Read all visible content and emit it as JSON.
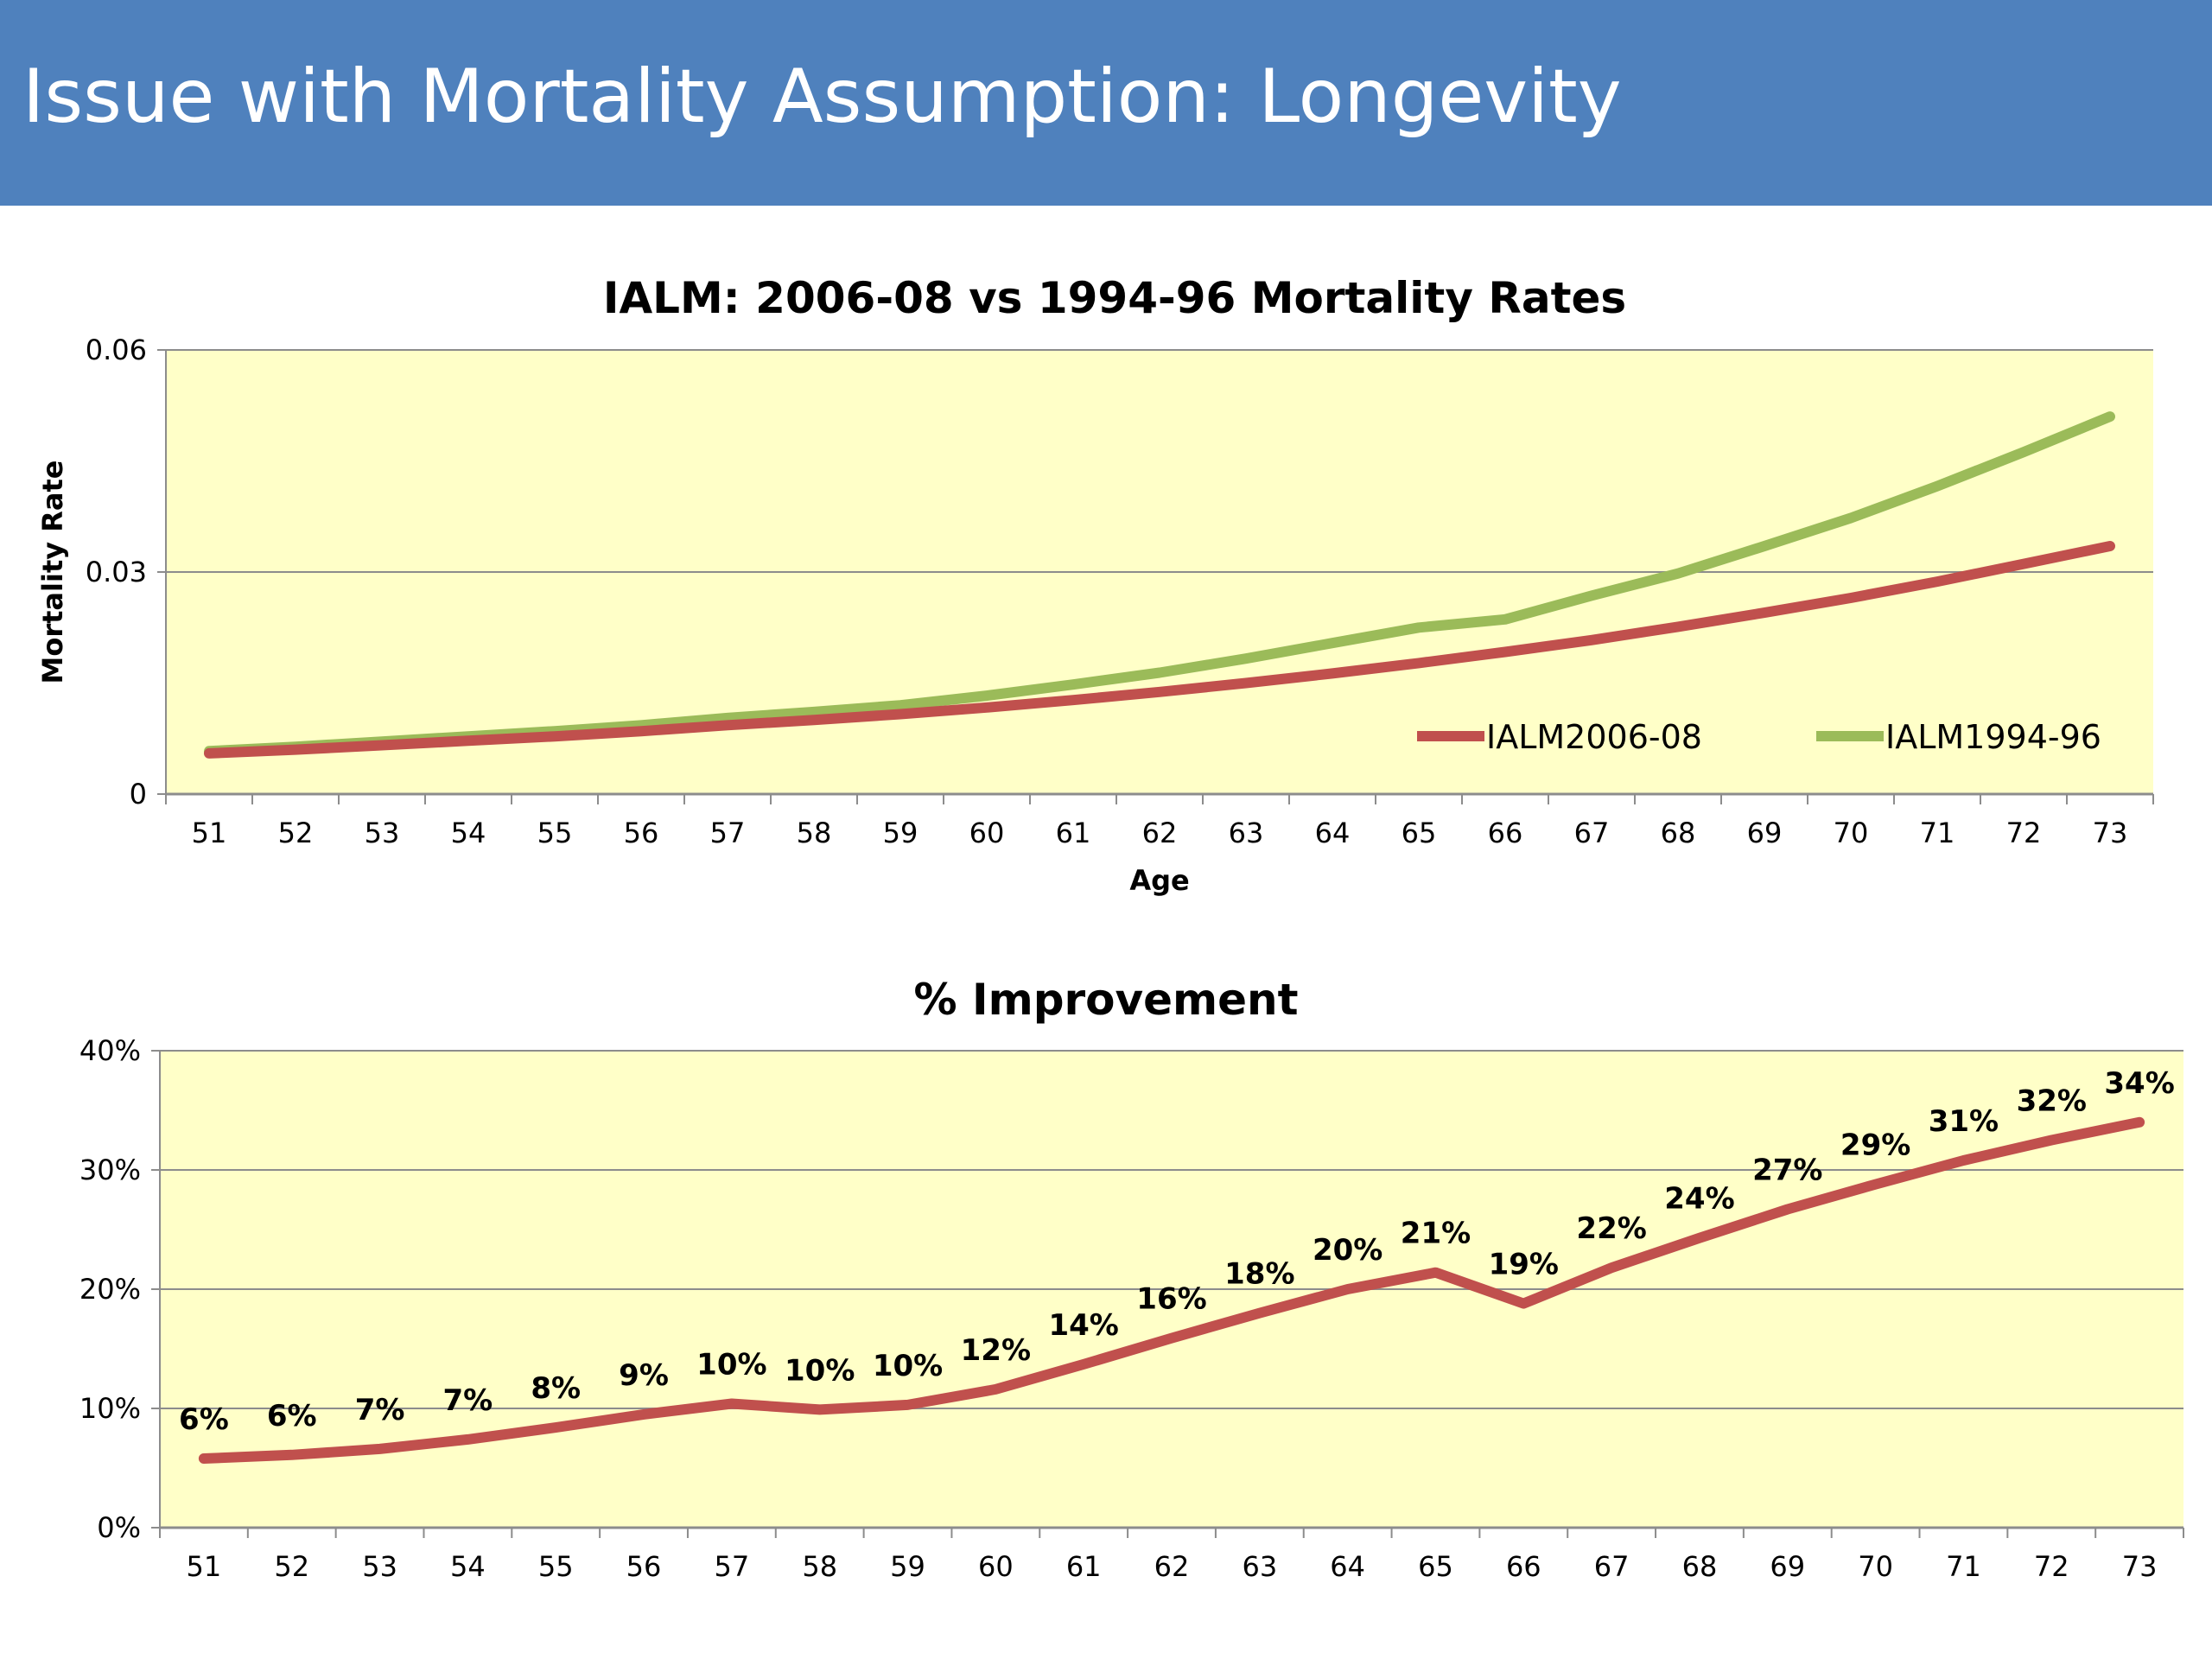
{
  "slide": {
    "title": "Issue with Mortality Assumption: Longevity"
  },
  "colors": {
    "title_bar": "#4f81bd",
    "plot_background": "#ffffc8",
    "series_2006": "#c0504d",
    "series_1994": "#9bbb59",
    "gridline": "#8c8c8c"
  },
  "chart_data": [
    {
      "type": "line",
      "title": "IALM: 2006-08 vs 1994-96 Mortality Rates",
      "xlabel": "Age",
      "ylabel": "Mortality Rate",
      "ylim": [
        0,
        0.06
      ],
      "yticks": [
        "0",
        "0.03",
        "0.06"
      ],
      "grid": true,
      "legend_position": "bottom-right",
      "x": [
        51,
        52,
        53,
        54,
        55,
        56,
        57,
        58,
        59,
        60,
        61,
        62,
        63,
        64,
        65,
        66,
        67,
        68,
        69,
        70,
        71,
        72,
        73
      ],
      "series": [
        {
          "name": "IALM2006-08",
          "values": [
            0.0055,
            0.006,
            0.0066,
            0.0072,
            0.0078,
            0.0085,
            0.0093,
            0.01,
            0.0108,
            0.0117,
            0.0127,
            0.0138,
            0.015,
            0.0163,
            0.0177,
            0.0192,
            0.0208,
            0.0226,
            0.0245,
            0.0265,
            0.0287,
            0.0311,
            0.0335
          ]
        },
        {
          "name": "IALM1994-96",
          "values": [
            0.0058,
            0.0064,
            0.0071,
            0.0078,
            0.0085,
            0.0093,
            0.0103,
            0.0111,
            0.012,
            0.0133,
            0.0148,
            0.0164,
            0.0183,
            0.0204,
            0.0225,
            0.0236,
            0.0268,
            0.0298,
            0.0335,
            0.0373,
            0.0416,
            0.0462,
            0.051
          ]
        }
      ]
    },
    {
      "type": "line",
      "title": "% Improvement",
      "xlabel": "",
      "ylabel": "",
      "ylim": [
        0,
        40
      ],
      "yticks": [
        "0%",
        "10%",
        "20%",
        "30%",
        "40%"
      ],
      "grid": true,
      "x": [
        51,
        52,
        53,
        54,
        55,
        56,
        57,
        58,
        59,
        60,
        61,
        62,
        63,
        64,
        65,
        66,
        67,
        68,
        69,
        70,
        71,
        72,
        73
      ],
      "series": [
        {
          "values": [
            5.8,
            6.1,
            6.6,
            7.4,
            8.4,
            9.5,
            10.4,
            9.9,
            10.3,
            11.6,
            13.7,
            15.9,
            18.0,
            20.0,
            21.4,
            18.8,
            21.8,
            24.3,
            26.7,
            28.8,
            30.8,
            32.5,
            34.0
          ],
          "labels": [
            "6%",
            "6%",
            "7%",
            "7%",
            "8%",
            "9%",
            "10%",
            "10%",
            "10%",
            "12%",
            "14%",
            "16%",
            "18%",
            "20%",
            "21%",
            "19%",
            "22%",
            "24%",
            "27%",
            "29%",
            "31%",
            "32%",
            "34%"
          ]
        }
      ]
    }
  ]
}
